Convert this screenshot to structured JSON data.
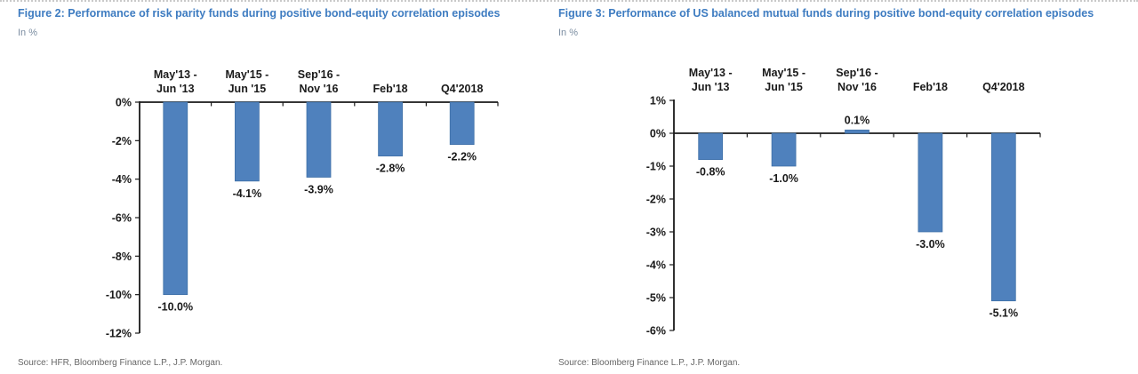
{
  "colors": {
    "title": "#3E7CC1",
    "subtitle": "#7B8DA1",
    "axis": "#1A1A1A",
    "source": "#666666",
    "bar": "#4F81BD"
  },
  "chart_data": [
    {
      "type": "bar",
      "title": "Figure 2: Performance of risk parity funds during positive bond-equity correlation episodes",
      "subtitle": "In %",
      "categories": [
        "May'13 -\nJun '13",
        "May'15 -\nJun '15",
        "Sep'16 -\nNov '16",
        "Feb'18",
        "Q4'2018"
      ],
      "values": [
        -10.0,
        -4.1,
        -3.9,
        -2.8,
        -2.2
      ],
      "data_labels": [
        "-10.0%",
        "-4.1%",
        "-3.9%",
        "-2.8%",
        "-2.2%"
      ],
      "xlabel": "",
      "ylabel": "In %",
      "ylim": [
        -12,
        0
      ],
      "yticks": [
        0,
        -2,
        -4,
        -6,
        -8,
        -10,
        -12
      ],
      "ytick_labels": [
        "0%",
        "-2%",
        "-4%",
        "-6%",
        "-8%",
        "-10%",
        "-12%"
      ],
      "grid": false,
      "legend": false,
      "bar_color": "#4F81BD",
      "bar_border": "#3C6EA5",
      "source": "Source: HFR, Bloomberg Finance L.P., J.P. Morgan."
    },
    {
      "type": "bar",
      "title": "Figure 3: Performance of US balanced mutual funds during positive bond-equity correlation episodes",
      "subtitle": "In %",
      "categories": [
        "May'13 -\nJun '13",
        "May'15 -\nJun '15",
        "Sep'16 -\nNov '16",
        "Feb'18",
        "Q4'2018"
      ],
      "values": [
        -0.8,
        -1.0,
        0.1,
        -3.0,
        -5.1
      ],
      "data_labels": [
        "-0.8%",
        "-1.0%",
        "0.1%",
        "-3.0%",
        "-5.1%"
      ],
      "xlabel": "",
      "ylabel": "In %",
      "ylim": [
        -6,
        1
      ],
      "yticks": [
        1,
        0,
        -1,
        -2,
        -3,
        -4,
        -5,
        -6
      ],
      "ytick_labels": [
        "1%",
        "0%",
        "-1%",
        "-2%",
        "-3%",
        "-4%",
        "-5%",
        "-6%"
      ],
      "grid": false,
      "legend": false,
      "bar_color": "#4F81BD",
      "bar_border": "#3C6EA5",
      "source": "Source: Bloomberg Finance L.P., J.P. Morgan."
    }
  ]
}
